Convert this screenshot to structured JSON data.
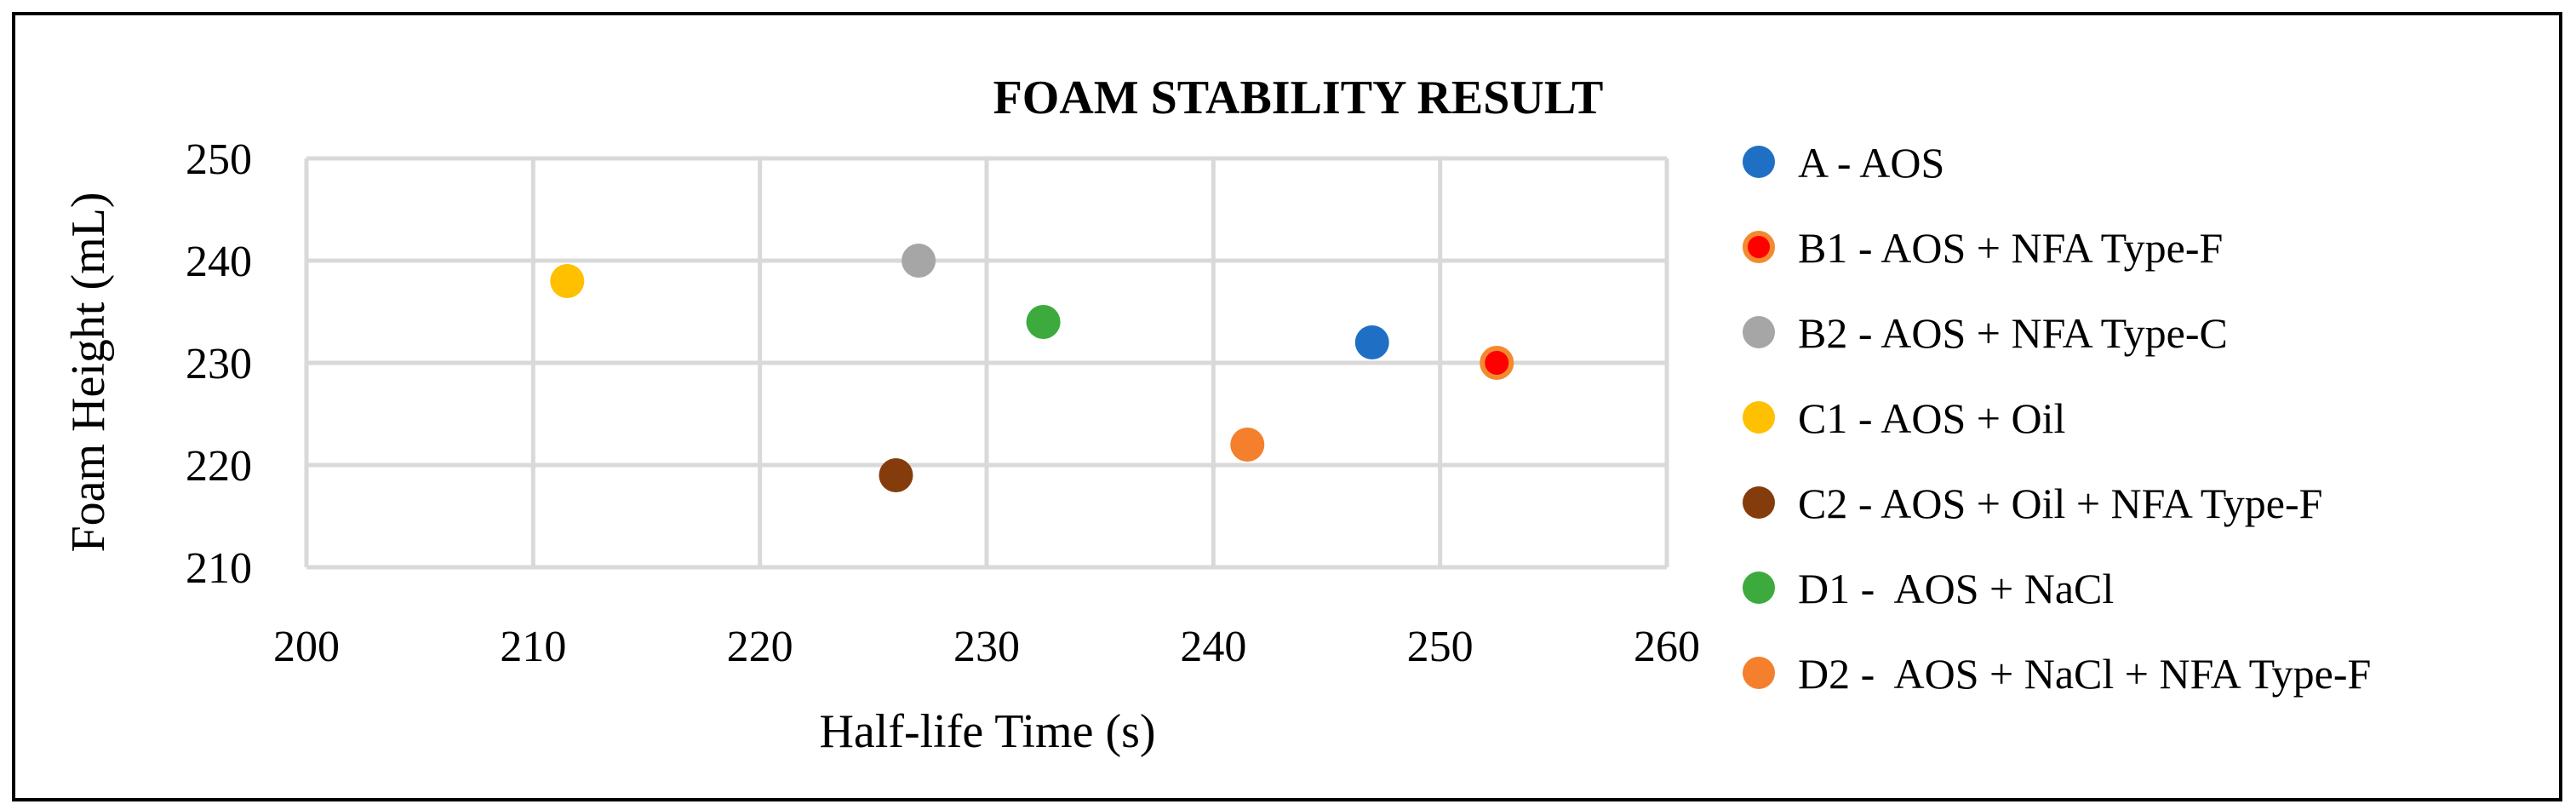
{
  "chart_data": {
    "type": "scatter",
    "title": "FOAM STABILITY RESULT",
    "xlabel": "Half-life Time (s)",
    "ylabel": "Foam Height (mL)",
    "xlim": [
      200,
      260
    ],
    "ylim": [
      210,
      250
    ],
    "x_ticks": [
      "200",
      "210",
      "220",
      "230",
      "240",
      "250",
      "260"
    ],
    "y_ticks": [
      "210",
      "220",
      "230",
      "240",
      "250"
    ],
    "grid": true,
    "legend_position": "right",
    "series": [
      {
        "name": "A - AOS",
        "x": 247,
        "y": 232,
        "color": "#1f6fc5"
      },
      {
        "name": "B1 - AOS + NFA Type-F",
        "x": 252.5,
        "y": 230,
        "color": "#ff0000",
        "edge_color": "#f4892f"
      },
      {
        "name": "B2 - AOS + NFA Type-C",
        "x": 227,
        "y": 240,
        "color": "#a6a6a6"
      },
      {
        "name": "C1 - AOS + Oil",
        "x": 211.5,
        "y": 238,
        "color": "#ffc000"
      },
      {
        "name": "C2 - AOS + Oil + NFA Type-F",
        "x": 226,
        "y": 219,
        "color": "#843c0c"
      },
      {
        "name": "D1 -  AOS + NaCl",
        "x": 232.5,
        "y": 234,
        "color": "#3daa3d"
      },
      {
        "name": "D2 -  AOS + NaCl + NFA Type-F",
        "x": 241.5,
        "y": 222,
        "color": "#f47f2c"
      }
    ]
  }
}
